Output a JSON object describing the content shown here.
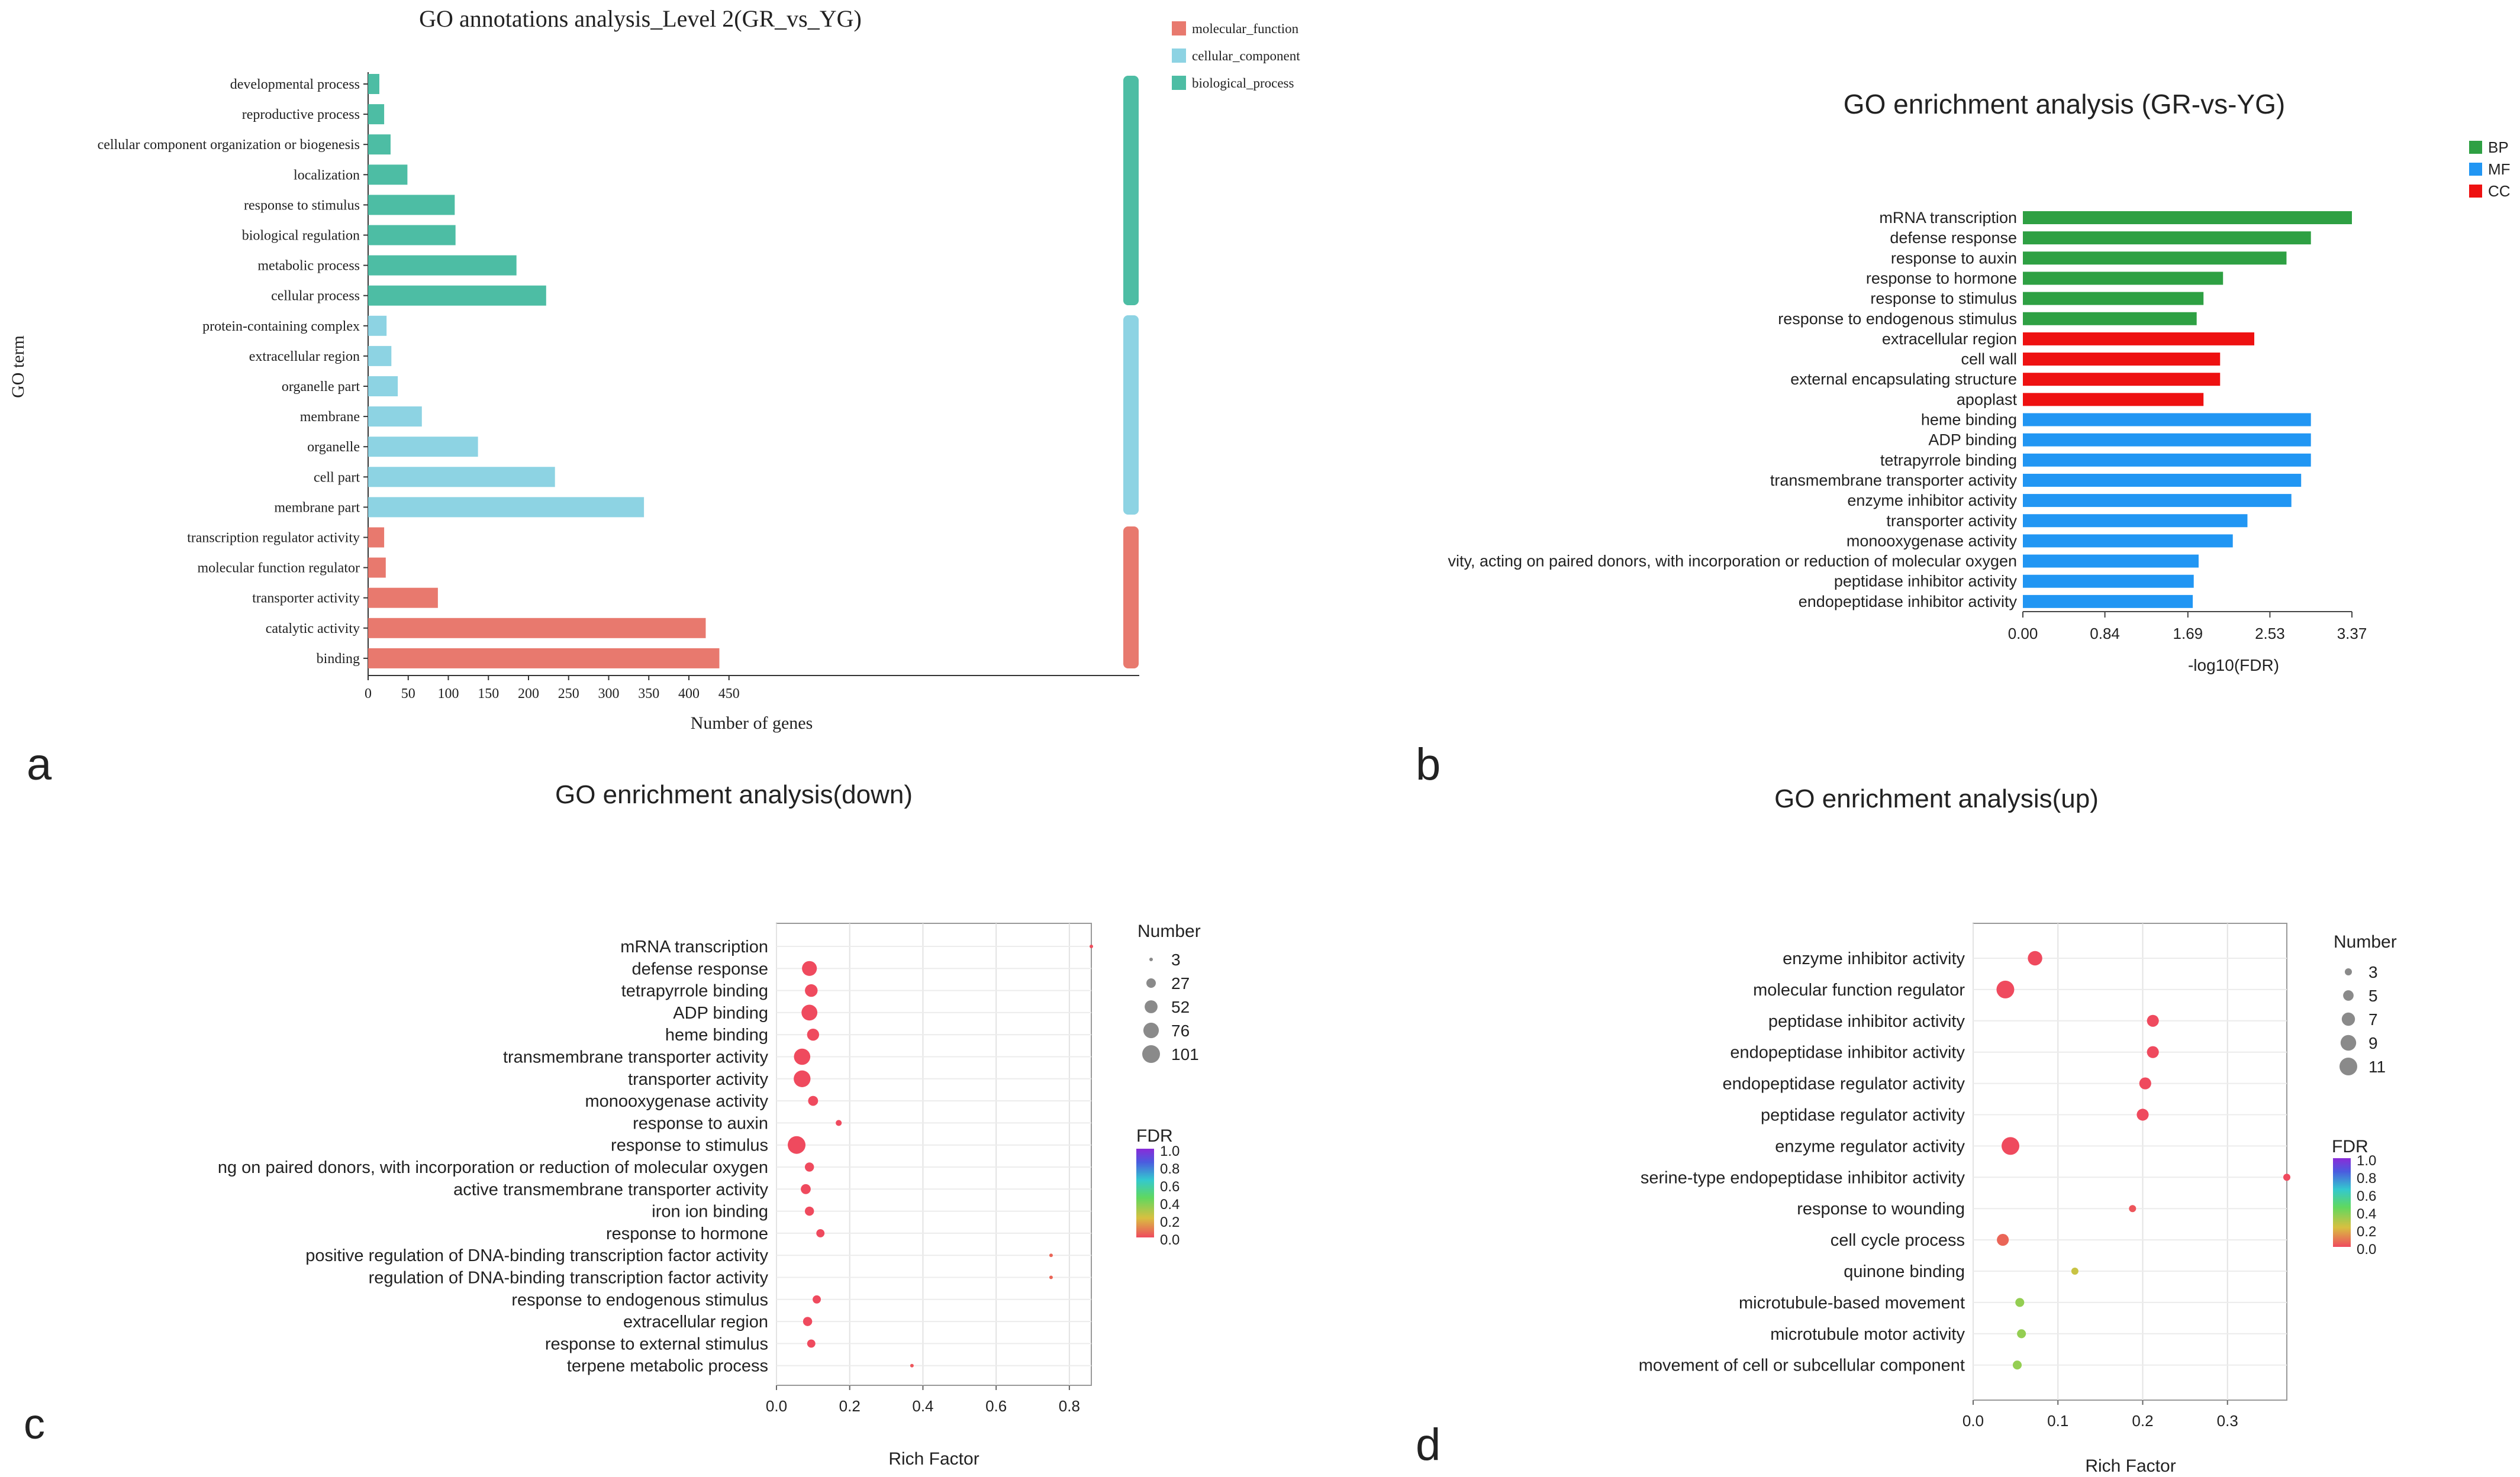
{
  "panel_letters": [
    "a",
    "b",
    "c",
    "d"
  ],
  "colors": {
    "molecular_function": "#e8796e",
    "cellular_component": "#8dd3e3",
    "biological_process": "#4dbda4",
    "BP": "#2ea043",
    "MF": "#2196f3",
    "CC": "#ee1111",
    "dot": "#ef4a5e",
    "fdr_gradient": [
      "#ef4a5e",
      "#d8c040",
      "#5fd860",
      "#33c8cf",
      "#4b5bdf",
      "#8a2bd8"
    ]
  },
  "chart_data": [
    {
      "type": "bar",
      "orientation": "horizontal",
      "title": "GO annotations analysis_Level 2(GR_vs_YG)",
      "xlabel": "Number of genes",
      "ylabel": "GO term",
      "xlim": [
        0,
        480
      ],
      "xticks": [
        "0",
        "50",
        "100",
        "150",
        "200",
        "250",
        "300",
        "350",
        "400",
        "450"
      ],
      "legend": [
        "molecular_function",
        "cellular_component",
        "biological_process"
      ],
      "legend_position": "top-right",
      "categories": [
        "developmental process",
        "reproductive process",
        "cellular component organization or biogenesis",
        "localization",
        "response to stimulus",
        "biological regulation",
        "metabolic process",
        "cellular process",
        "protein-containing complex",
        "extracellular region",
        "organelle part",
        "membrane",
        "organelle",
        "cell part",
        "membrane part",
        "transcription regulator activity",
        "molecular function regulator",
        "transporter activity",
        "catalytic activity",
        "binding"
      ],
      "values": [
        14,
        20,
        28,
        49,
        108,
        109,
        185,
        222,
        23,
        29,
        37,
        67,
        137,
        233,
        344,
        20,
        22,
        87,
        421,
        438
      ],
      "groups": [
        "biological_process",
        "biological_process",
        "biological_process",
        "biological_process",
        "biological_process",
        "biological_process",
        "biological_process",
        "biological_process",
        "cellular_component",
        "cellular_component",
        "cellular_component",
        "cellular_component",
        "cellular_component",
        "cellular_component",
        "cellular_component",
        "molecular_function",
        "molecular_function",
        "molecular_function",
        "molecular_function",
        "molecular_function"
      ]
    },
    {
      "type": "bar",
      "orientation": "horizontal",
      "title": "GO enrichment analysis (GR-vs-YG)",
      "xlabel": "-log10(FDR)",
      "xlim": [
        0,
        3.37
      ],
      "xticks": [
        "0.00",
        "0.84",
        "1.69",
        "2.53",
        "3.37"
      ],
      "legend": [
        "BP",
        "MF",
        "CC"
      ],
      "legend_position": "top-right",
      "categories": [
        "mRNA transcription",
        "defense response",
        "response to auxin",
        "response to hormone",
        "response to stimulus",
        "response to endogenous stimulus",
        "extracellular region",
        "cell wall",
        "external encapsulating structure",
        "apoplast",
        "heme binding",
        "ADP binding",
        "tetrapyrrole binding",
        "transmembrane transporter activity",
        "enzyme inhibitor activity",
        "transporter activity",
        "monooxygenase activity",
        "vity, acting on paired donors, with incorporation or reduction of molecular oxygen",
        "peptidase inhibitor activity",
        "endopeptidase inhibitor activity"
      ],
      "values": [
        3.37,
        2.95,
        2.7,
        2.05,
        1.85,
        1.78,
        2.37,
        2.02,
        2.02,
        1.85,
        2.95,
        2.95,
        2.95,
        2.85,
        2.75,
        2.3,
        2.15,
        1.8,
        1.75,
        1.74
      ],
      "groups": [
        "BP",
        "BP",
        "BP",
        "BP",
        "BP",
        "BP",
        "CC",
        "CC",
        "CC",
        "CC",
        "MF",
        "MF",
        "MF",
        "MF",
        "MF",
        "MF",
        "MF",
        "MF",
        "MF",
        "MF"
      ]
    },
    {
      "type": "scatter",
      "title": "GO enrichment analysis(down)",
      "xlabel": "Rich Factor",
      "xlim": [
        0,
        0.86
      ],
      "xticks": [
        "0.0",
        "0.2",
        "0.4",
        "0.6",
        "0.8"
      ],
      "size_legend_title": "Number",
      "size_legend": [
        "3",
        "27",
        "52",
        "76",
        "101"
      ],
      "color_legend_title": "FDR",
      "color_legend": [
        "1.0",
        "0.8",
        "0.6",
        "0.4",
        "0.2",
        "0.0"
      ],
      "categories": [
        "mRNA transcription",
        "defense response",
        "tetrapyrrole binding",
        "ADP binding",
        "heme binding",
        "transmembrane transporter activity",
        "transporter activity",
        "monooxygenase activity",
        "response to auxin",
        "response to stimulus",
        "ng on paired donors, with incorporation or reduction of molecular oxygen",
        "active transmembrane transporter activity",
        "iron ion binding",
        "response to hormone",
        "positive regulation of DNA-binding transcription factor activity",
        "regulation of DNA-binding transcription factor activity",
        "response to endogenous stimulus",
        "extracellular region",
        "response to external stimulus",
        "terpene metabolic process"
      ],
      "x": [
        0.86,
        0.09,
        0.095,
        0.09,
        0.1,
        0.07,
        0.07,
        0.1,
        0.17,
        0.055,
        0.09,
        0.08,
        0.09,
        0.12,
        0.75,
        0.75,
        0.11,
        0.085,
        0.095,
        0.37
      ],
      "number": [
        3,
        70,
        50,
        80,
        45,
        85,
        90,
        30,
        10,
        101,
        25,
        30,
        25,
        20,
        3,
        3,
        20,
        25,
        20,
        3
      ],
      "fdr": [
        0.01,
        0.0,
        0.0,
        0.0,
        0.0,
        0.0,
        0.0,
        0.0,
        0.0,
        0.0,
        0.0,
        0.0,
        0.0,
        0.0,
        0.05,
        0.05,
        0.0,
        0.0,
        0.0,
        0.02
      ]
    },
    {
      "type": "scatter",
      "title": "GO enrichment analysis(up)",
      "xlabel": "Rich Factor",
      "xlim": [
        0,
        0.37
      ],
      "xticks": [
        "0.0",
        "0.1",
        "0.2",
        "0.3"
      ],
      "size_legend_title": "Number",
      "size_legend": [
        "3",
        "5",
        "7",
        "9",
        "11"
      ],
      "color_legend_title": "FDR",
      "color_legend": [
        "1.0",
        "0.8",
        "0.6",
        "0.4",
        "0.2",
        "0.0"
      ],
      "categories": [
        "enzyme inhibitor activity",
        "molecular function regulator",
        "peptidase inhibitor activity",
        "endopeptidase inhibitor activity",
        "endopeptidase regulator activity",
        "peptidase regulator activity",
        "enzyme regulator activity",
        "serine-type endopeptidase inhibitor activity",
        "response to wounding",
        "cell cycle process",
        "quinone binding",
        "microtubule-based movement",
        "microtubule motor activity",
        "movement of cell or subcellular component"
      ],
      "x": [
        0.073,
        0.038,
        0.212,
        0.212,
        0.203,
        0.2,
        0.044,
        0.37,
        0.188,
        0.035,
        0.12,
        0.055,
        0.057,
        0.052
      ],
      "number": [
        8,
        11,
        6,
        6,
        6,
        6,
        11,
        3,
        3,
        6,
        3,
        4,
        4,
        4
      ],
      "fdr": [
        0.0,
        0.0,
        0.0,
        0.0,
        0.0,
        0.0,
        0.0,
        0.0,
        0.02,
        0.05,
        0.25,
        0.35,
        0.35,
        0.35
      ]
    }
  ]
}
